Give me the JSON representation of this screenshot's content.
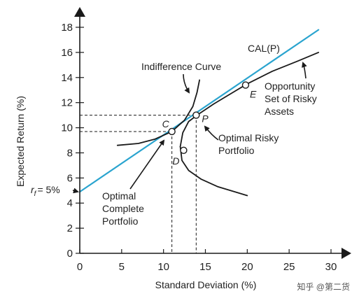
{
  "chart_data": {
    "type": "line",
    "xlabel": "Standard Deviation (%)",
    "ylabel": "Expected Return (%)",
    "xlim": [
      0,
      30
    ],
    "ylim": [
      0,
      18
    ],
    "x_ticks": [
      0,
      5,
      10,
      15,
      20,
      25,
      30
    ],
    "y_ticks": [
      0,
      2,
      4,
      6,
      8,
      10,
      12,
      14,
      16,
      18
    ],
    "grid": false,
    "colors": {
      "cal": "#2aa4cf",
      "curve": "#1a1a1a",
      "guide": "#1a1a1a"
    },
    "rf": {
      "value": 5,
      "label": "= 5%",
      "symbol": "r",
      "sub": "f"
    },
    "series": [
      {
        "name": "CAL(P)",
        "kind": "cal",
        "x": [
          0,
          28.5
        ],
        "y": [
          4.9,
          17.8
        ]
      },
      {
        "name": "Opportunity Set of Risky Assets",
        "kind": "frontier",
        "x": [
          12.0,
          12.3,
          13.0,
          14.0,
          16.0,
          18.0,
          20.0,
          23.0,
          26.0,
          28.5
        ],
        "y": [
          8.5,
          9.6,
          10.5,
          11.0,
          11.9,
          12.7,
          13.5,
          14.5,
          15.3,
          16.0
        ]
      },
      {
        "name": "Opportunity Set of Risky Assets (lower branch)",
        "kind": "frontier-lower",
        "x": [
          12.0,
          12.2,
          13.0,
          14.5,
          16.5,
          19.0,
          20.0
        ],
        "y": [
          8.5,
          7.4,
          6.6,
          5.9,
          5.3,
          4.8,
          4.6
        ]
      },
      {
        "name": "Indifference Curve",
        "kind": "indifference",
        "x": [
          4.5,
          7.0,
          9.0,
          11.0,
          12.5,
          13.5,
          14.0,
          14.3
        ],
        "y": [
          8.6,
          8.75,
          9.1,
          9.7,
          10.6,
          11.7,
          12.8,
          13.8
        ]
      }
    ],
    "points": [
      {
        "id": "C",
        "label": "C",
        "x": 11.0,
        "y": 9.7
      },
      {
        "id": "P",
        "label": "P",
        "x": 13.9,
        "y": 11.0
      },
      {
        "id": "E",
        "label": "E",
        "x": 19.8,
        "y": 13.4
      },
      {
        "id": "D",
        "label": "D",
        "x": 12.4,
        "y": 8.2
      }
    ],
    "annotations": {
      "cal_label": "CAL(P)",
      "indifference": "Indifference Curve",
      "opportunity": [
        "Opportunity",
        "Set of Risky",
        "Assets"
      ],
      "optimal_risky": [
        "Optimal Risky",
        "Portfolio"
      ],
      "optimal_complete": [
        "Optimal",
        "Complete",
        "Portfolio"
      ]
    }
  },
  "watermark": "知乎 @第二货"
}
